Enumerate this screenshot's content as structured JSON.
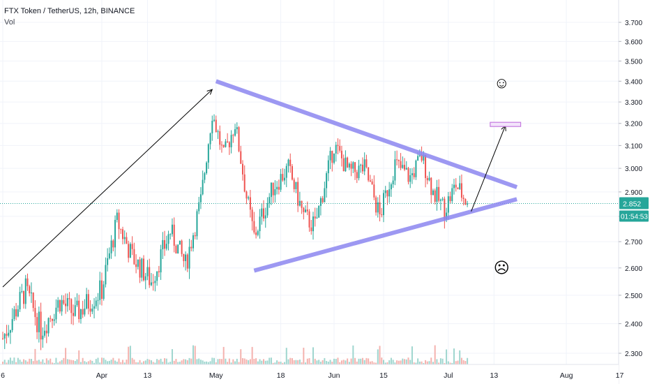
{
  "header": {
    "symbol_line": "FTX Token / TetherUS, 12h, BINANCE",
    "indicator": "Vol"
  },
  "colors": {
    "up": "#26a69a",
    "down": "#ef5350",
    "up_vol": "#9fd6cf",
    "down_vol": "#f4b2ae",
    "trendline": "#8c87f0",
    "target_box": "#c57ae0",
    "grid": "#f0f3fa",
    "price_line": "#26a69a",
    "axis_text": "#131722"
  },
  "chart_data": {
    "type": "candlestick",
    "title": "FTX Token / TetherUS, 12h, BINANCE",
    "x_ticks": [
      "6",
      "Apr",
      "13",
      "May",
      "18",
      "Jun",
      "15",
      "Jul",
      "13",
      "Aug",
      "17"
    ],
    "y_ticks": [
      "3.700",
      "3.600",
      "3.500",
      "3.400",
      "3.300",
      "3.200",
      "3.100",
      "3.000",
      "2.900",
      "2.800",
      "2.700",
      "2.600",
      "2.500",
      "2.400",
      "2.300"
    ],
    "ylim": [
      2.25,
      3.78
    ],
    "y_scale": "log",
    "grid": true,
    "last_price": "2.852",
    "countdown": "01:54:53",
    "price_path": [
      {
        "t": "Mar 06",
        "p": 2.35
      },
      {
        "t": "Mar 12",
        "p": 2.52
      },
      {
        "t": "Mar 16",
        "p": 2.38
      },
      {
        "t": "Mar 21",
        "p": 2.48
      },
      {
        "t": "Mar 25",
        "p": 2.43
      },
      {
        "t": "Apr 01",
        "p": 2.52
      },
      {
        "t": "Apr 05",
        "p": 2.78
      },
      {
        "t": "Apr 09",
        "p": 2.64
      },
      {
        "t": "Apr 14",
        "p": 2.55
      },
      {
        "t": "Apr 19",
        "p": 2.74
      },
      {
        "t": "Apr 23",
        "p": 2.61
      },
      {
        "t": "Apr 27",
        "p": 2.86
      },
      {
        "t": "Apr 30",
        "p": 3.25
      },
      {
        "t": "May 03",
        "p": 3.05
      },
      {
        "t": "May 06",
        "p": 3.2
      },
      {
        "t": "May 09",
        "p": 2.88
      },
      {
        "t": "May 11",
        "p": 2.72
      },
      {
        "t": "May 16",
        "p": 2.92
      },
      {
        "t": "May 20",
        "p": 3.0
      },
      {
        "t": "May 24",
        "p": 2.8
      },
      {
        "t": "May 27",
        "p": 2.76
      },
      {
        "t": "Jun 01",
        "p": 3.1
      },
      {
        "t": "Jun 05",
        "p": 2.98
      },
      {
        "t": "Jun 09",
        "p": 3.0
      },
      {
        "t": "Jun 13",
        "p": 2.8
      },
      {
        "t": "Jun 17",
        "p": 3.02
      },
      {
        "t": "Jun 21",
        "p": 2.96
      },
      {
        "t": "Jun 24",
        "p": 3.05
      },
      {
        "t": "Jun 27",
        "p": 2.9
      },
      {
        "t": "Jun 30",
        "p": 2.83
      },
      {
        "t": "Jul 03",
        "p": 2.93
      },
      {
        "t": "Jul 06",
        "p": 2.852
      }
    ],
    "annotations": {
      "upper_trendline": [
        {
          "t": "May 01",
          "p": 3.4
        },
        {
          "t": "Jul 19",
          "p": 2.92
        }
      ],
      "lower_trendline": [
        {
          "t": "May 11",
          "p": 2.59
        },
        {
          "t": "Jul 19",
          "p": 2.87
        }
      ],
      "rally_arrow": [
        {
          "t": "Mar 06",
          "p": 2.53
        },
        {
          "t": "Apr 30",
          "p": 3.36
        }
      ],
      "breakout_arrow": [
        {
          "t": "Jul 07",
          "p": 2.82
        },
        {
          "t": "Jul 16",
          "p": 3.19
        }
      ],
      "target_box": {
        "t_start": "Jul 12",
        "t_end": "Jul 20",
        "p_top": 3.205,
        "p_bottom": 3.19
      },
      "happy_face": {
        "t": "Jul 15",
        "p": 3.39
      },
      "sad_face": {
        "t": "Jul 15",
        "p": 2.6
      }
    }
  },
  "symbols": {
    "happy": "☺",
    "sad": "☹"
  }
}
